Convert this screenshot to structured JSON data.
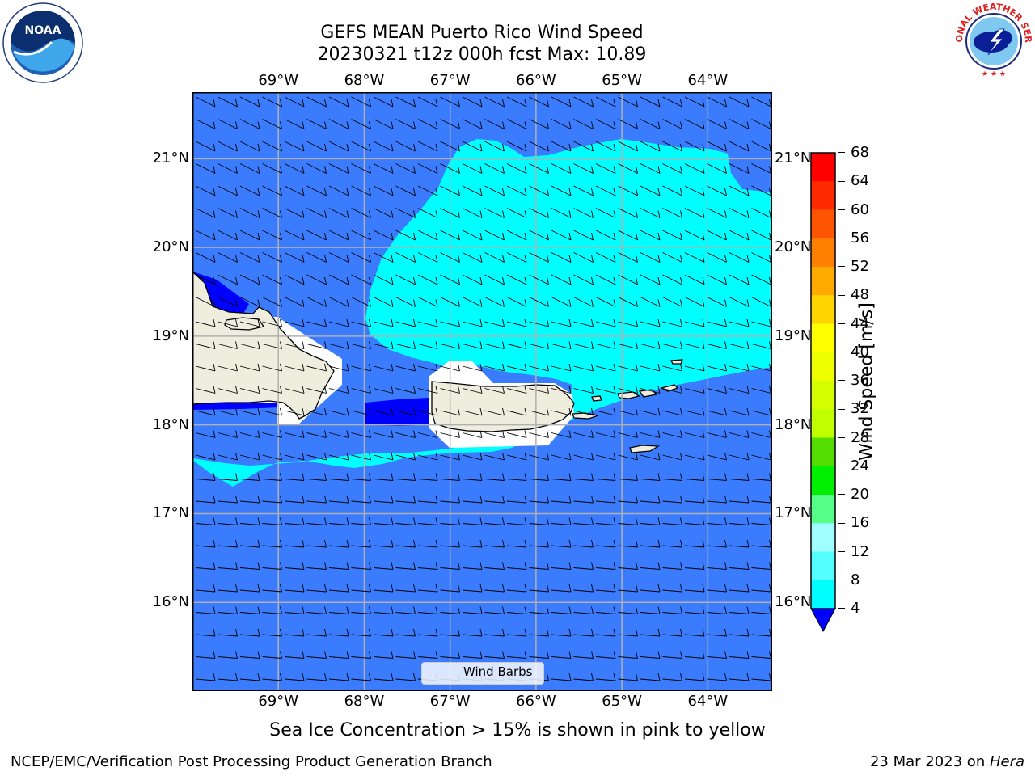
{
  "title": {
    "line1": "GEFS MEAN Puerto Rico Wind Speed",
    "line2": "20230321 t12z 000h fcst   Max: 10.89"
  },
  "map": {
    "lon_labels": [
      "69°W",
      "68°W",
      "67°W",
      "66°W",
      "65°W",
      "64°W"
    ],
    "lat_labels": [
      "21°N",
      "20°N",
      "19°N",
      "18°N",
      "17°N",
      "16°N"
    ],
    "extent": {
      "lon_min": -70.0,
      "lon_max": -63.25,
      "lat_min": 15.0,
      "lat_max": 21.75
    },
    "colors": {
      "band_4_8": "#3b7cff",
      "band_8_12": "#00ffff",
      "band_below_4": "#0000ff",
      "land": "#efedde",
      "grid": "#b0b0b0"
    }
  },
  "legend": {
    "label": "Wind Barbs"
  },
  "colorbar": {
    "label": "Wind Speed [m/s]",
    "ticks": [
      "68",
      "64",
      "60",
      "56",
      "52",
      "48",
      "44",
      "40",
      "36",
      "32",
      "28",
      "24",
      "20",
      "16",
      "12",
      "8",
      "4"
    ],
    "colors": [
      "#ff0000",
      "#ff2a00",
      "#ff5500",
      "#ff8000",
      "#ffaa00",
      "#ffd500",
      "#ffff00",
      "#eeff00",
      "#d5ff00",
      "#bfff00",
      "#55dd00",
      "#00ee00",
      "#55ff88",
      "#a0ffff",
      "#55ffff",
      "#00ffff",
      "#3b7cff"
    ],
    "extend_color": "#0000ff"
  },
  "note": "Sea Ice Concentration > 15% is shown in pink to yellow",
  "footer": {
    "left": "NCEP/EMC/Verification Post Processing Product Generation Branch",
    "right_prefix": "23 Mar 2023 on ",
    "right_machine": "Hera"
  },
  "logos": {
    "left": {
      "icon": "noaa-logo-icon",
      "text": "NOAA"
    },
    "right": {
      "icon": "nws-logo-icon",
      "text": "NATIONAL WEATHER SERVICE"
    }
  }
}
